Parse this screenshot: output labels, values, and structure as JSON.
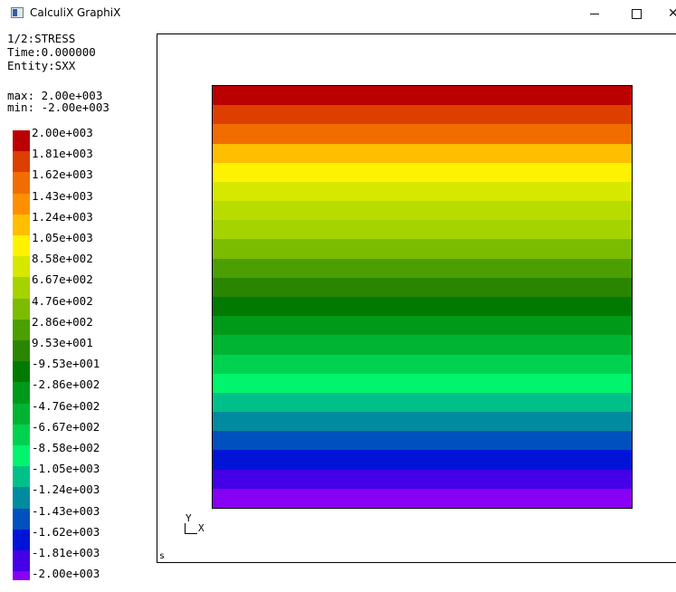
{
  "window": {
    "title": "CalculiX GraphiX",
    "close_glyph": "✕"
  },
  "info": {
    "dataset": "1/2:STRESS",
    "time": "Time:0.000000",
    "entity": "Entity:SXX",
    "max": "max: 2.00e+003",
    "min": "min: -2.00e+003"
  },
  "legend": [
    {
      "label": "2.00e+003",
      "color": "#bb0000"
    },
    {
      "label": "1.81e+003",
      "color": "#dc3f00"
    },
    {
      "label": "1.62e+003",
      "color": "#f16d00"
    },
    {
      "label": "1.43e+003",
      "color": "#ff8f00"
    },
    {
      "label": "1.24e+003",
      "color": "#ffbe00"
    },
    {
      "label": "1.05e+003",
      "color": "#fff200"
    },
    {
      "label": "8.58e+002",
      "color": "#d6e800"
    },
    {
      "label": "6.67e+002",
      "color": "#a5d300"
    },
    {
      "label": "4.76e+002",
      "color": "#7cbc00"
    },
    {
      "label": "2.86e+002",
      "color": "#4c9f00"
    },
    {
      "label": "9.53e+001",
      "color": "#2a8600"
    },
    {
      "label": "-9.53e+001",
      "color": "#007a00"
    },
    {
      "label": "-2.86e+002",
      "color": "#009a19"
    },
    {
      "label": "-4.76e+002",
      "color": "#00b433"
    },
    {
      "label": "-6.67e+002",
      "color": "#00d24f"
    },
    {
      "label": "-8.58e+002",
      "color": "#00f46d"
    },
    {
      "label": "-1.05e+003",
      "color": "#00c08a"
    },
    {
      "label": "-1.24e+003",
      "color": "#008ba0"
    },
    {
      "label": "-1.43e+003",
      "color": "#0050c0"
    },
    {
      "label": "-1.62e+003",
      "color": "#0014d8"
    },
    {
      "label": "-1.81e+003",
      "color": "#4400e6"
    },
    {
      "label": "-2.00e+003",
      "color": "#8800f4"
    }
  ],
  "model_bands": [
    "#bb0000",
    "#dc3f00",
    "#f16d00",
    "#ffbe00",
    "#fff200",
    "#d6e800",
    "#b9dc00",
    "#a5d300",
    "#7cbc00",
    "#4c9f00",
    "#2a8600",
    "#007a00",
    "#009a19",
    "#00b433",
    "#00d24f",
    "#00f46d",
    "#00c08a",
    "#008ba0",
    "#0050c0",
    "#0014d8",
    "#4400e6",
    "#8800f4"
  ],
  "viewport": {
    "axis_y_label": "Y",
    "axis_x_label": "X",
    "corner_label": "s"
  }
}
